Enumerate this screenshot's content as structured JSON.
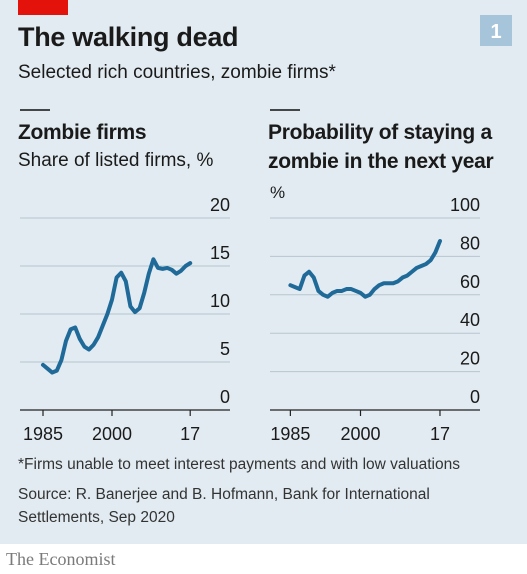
{
  "header": {
    "badge": "1",
    "title": "The walking dead",
    "subtitle": "Selected rich countries, zombie firms*"
  },
  "chart_data": [
    {
      "type": "line",
      "title": "Zombie firms",
      "subtitle": "Share of listed firms, %",
      "x": [
        1985,
        1986,
        1987,
        1988,
        1989,
        1990,
        1991,
        1992,
        1993,
        1994,
        1995,
        1996,
        1997,
        1998,
        1999,
        2000,
        2001,
        2002,
        2003,
        2004,
        2005,
        2006,
        2007,
        2008,
        2009,
        2010,
        2011,
        2012,
        2013,
        2014,
        2015,
        2016,
        2017
      ],
      "values": [
        4.7,
        4.3,
        3.9,
        4.1,
        5.2,
        7.2,
        8.4,
        8.6,
        7.4,
        6.6,
        6.3,
        6.8,
        7.6,
        8.8,
        10.0,
        11.5,
        13.8,
        14.3,
        13.4,
        10.8,
        10.2,
        10.6,
        12.2,
        14.2,
        15.7,
        14.8,
        14.7,
        14.8,
        14.6,
        14.2,
        14.5,
        15.0,
        15.3
      ],
      "color": "#1f6a98",
      "xlim": [
        1980,
        2020
      ],
      "xticks": [
        1985,
        2000,
        {
          "value": 2017,
          "label": "17"
        }
      ],
      "ylim": [
        0,
        20
      ],
      "yticks": [
        0,
        5,
        10,
        15,
        20
      ],
      "grid": true
    },
    {
      "type": "line",
      "title": "Probability of staying a zombie in the next year",
      "unit": "%",
      "x": [
        1985,
        1986,
        1987,
        1988,
        1989,
        1990,
        1991,
        1992,
        1993,
        1994,
        1995,
        1996,
        1997,
        1998,
        1999,
        2000,
        2001,
        2002,
        2003,
        2004,
        2005,
        2006,
        2007,
        2008,
        2009,
        2010,
        2011,
        2012,
        2013,
        2014,
        2015,
        2016,
        2017
      ],
      "values": [
        65,
        64,
        63,
        70,
        72,
        69,
        62,
        60,
        59,
        61,
        62,
        62,
        63,
        63,
        62,
        61,
        59,
        60,
        63,
        65,
        66,
        66,
        66,
        67,
        69,
        70,
        72,
        74,
        75,
        76,
        78,
        82,
        88
      ],
      "color": "#1f6a98",
      "xlim": [
        1980,
        2020
      ],
      "xticks": [
        1985,
        2000,
        {
          "value": 2017,
          "label": "17"
        }
      ],
      "ylim": [
        0,
        100
      ],
      "yticks": [
        0,
        20,
        40,
        60,
        80,
        100
      ],
      "grid": true
    }
  ],
  "footer": {
    "note": "*Firms unable to meet interest payments and with low valuations",
    "source": "Source: R. Banerjee and B. Hofmann, Bank for International Settlements, Sep 2020",
    "brand": "The Economist"
  }
}
